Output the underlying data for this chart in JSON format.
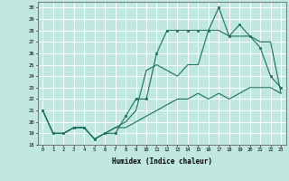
{
  "title": "",
  "xlabel": "Humidex (Indice chaleur)",
  "background_color": "#c0e8e0",
  "grid_color": "#ffffff",
  "line_color": "#1a6e60",
  "xlim": [
    -0.5,
    23.5
  ],
  "ylim": [
    18,
    30.5
  ],
  "yticks": [
    18,
    19,
    20,
    21,
    22,
    23,
    24,
    25,
    26,
    27,
    28,
    29,
    30
  ],
  "xticks": [
    0,
    1,
    2,
    3,
    4,
    5,
    6,
    7,
    8,
    9,
    10,
    11,
    12,
    13,
    14,
    15,
    16,
    17,
    18,
    19,
    20,
    21,
    22,
    23
  ],
  "series": [
    {
      "x": [
        0,
        1,
        2,
        3,
        4,
        5,
        6,
        7,
        8,
        9,
        10,
        11,
        12,
        13,
        14,
        15,
        16,
        17,
        18,
        19,
        20,
        21,
        22,
        23
      ],
      "y": [
        21,
        19,
        19,
        19.5,
        19.5,
        18.5,
        19,
        19,
        20.5,
        22,
        22,
        26,
        28,
        28,
        28,
        28,
        28,
        30,
        27.5,
        28.5,
        27.5,
        26.5,
        24,
        23
      ],
      "marker": true
    },
    {
      "x": [
        0,
        1,
        2,
        3,
        4,
        5,
        6,
        7,
        8,
        9,
        10,
        11,
        12,
        13,
        14,
        15,
        16,
        17,
        18,
        19,
        20,
        21,
        22,
        23
      ],
      "y": [
        21,
        19,
        19,
        19.5,
        19.5,
        18.5,
        19,
        19.5,
        20,
        21,
        24.5,
        25,
        24.5,
        24,
        25,
        25,
        28,
        28,
        27.5,
        27.5,
        27.5,
        27,
        27,
        22.5
      ],
      "marker": false
    },
    {
      "x": [
        0,
        1,
        2,
        3,
        4,
        5,
        6,
        7,
        8,
        9,
        10,
        11,
        12,
        13,
        14,
        15,
        16,
        17,
        18,
        19,
        20,
        21,
        22,
        23
      ],
      "y": [
        21,
        19,
        19,
        19.5,
        19.5,
        18.5,
        19,
        19.5,
        19.5,
        20,
        20.5,
        21,
        21.5,
        22,
        22,
        22.5,
        22,
        22.5,
        22,
        22.5,
        23,
        23,
        23,
        22.5
      ],
      "marker": false
    }
  ]
}
